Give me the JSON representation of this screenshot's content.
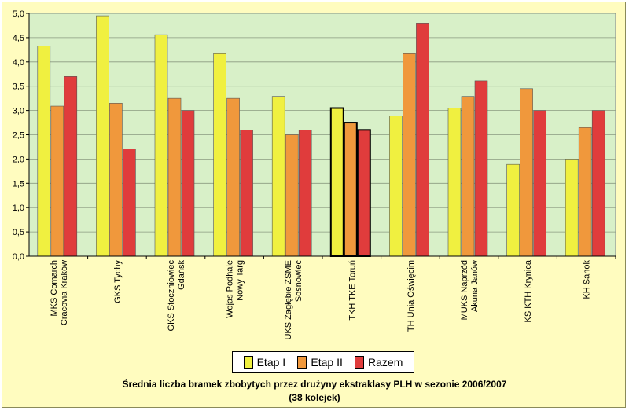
{
  "chart_data": {
    "type": "bar",
    "title": "Średnia liczba bramek zbobytych przez drużyny ekstraklasy PLH w sezonie 2006/2007",
    "subtitle": "(38 kolejek)",
    "categories": [
      [
        "MKS Comarch",
        "Cracovia Kraków"
      ],
      [
        "GKS Tychy"
      ],
      [
        "GKS Stoczniowiec",
        "Gdańsk"
      ],
      [
        "Wojas Podhale",
        "Nowy Targ"
      ],
      [
        "UKS Zagłębie ZSME",
        "Sosnowiec"
      ],
      [
        "TKH TKE Toruń"
      ],
      [
        "TH Unia Oświęcim"
      ],
      [
        "MUKS Naprzód",
        "Akuna Janów"
      ],
      [
        "KS KTH Krynica"
      ],
      [
        "KH Sanok"
      ]
    ],
    "series": [
      {
        "name": "Etap I",
        "color": "#f0f040",
        "values": [
          4.33,
          4.95,
          4.56,
          4.17,
          3.29,
          3.05,
          2.89,
          3.05,
          1.89,
          2.0
        ]
      },
      {
        "name": "Etap II",
        "color": "#f0983c",
        "values": [
          3.09,
          3.15,
          3.25,
          3.25,
          2.5,
          2.75,
          4.17,
          3.29,
          3.45,
          2.65
        ]
      },
      {
        "name": "Razem",
        "color": "#e03c3c",
        "values": [
          3.7,
          2.21,
          3.0,
          2.6,
          2.6,
          2.6,
          4.8,
          3.61,
          3.0,
          3.0
        ]
      }
    ],
    "highlighted_category_index": 5,
    "ylim": [
      0,
      5
    ],
    "yticks": [
      "0,0",
      "0,5",
      "1,0",
      "1,5",
      "2,0",
      "2,5",
      "3,0",
      "3,5",
      "4,0",
      "4,5",
      "5,0"
    ],
    "grid": true,
    "plot_background": "#d8f0c8",
    "legend_position": "bottom"
  }
}
